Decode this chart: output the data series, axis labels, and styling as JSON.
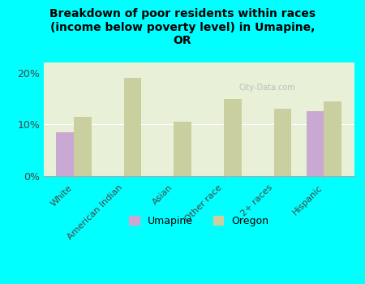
{
  "title": "Breakdown of poor residents within races\n(income below poverty level) in Umapine,\nOR",
  "categories": [
    "White",
    "American Indian",
    "Asian",
    "Other race",
    "2+ races",
    "Hispanic"
  ],
  "umapine_values": [
    8.5,
    0,
    0,
    0,
    0,
    12.5
  ],
  "oregon_values": [
    11.5,
    19.0,
    10.5,
    15.0,
    13.0,
    14.5
  ],
  "umapine_color": "#c9a8d4",
  "oregon_color": "#c9cf9e",
  "bg_color": "#00ffff",
  "plot_bg_color": "#e8f0d8",
  "ylim": [
    0,
    22
  ],
  "yticks": [
    0,
    10,
    20
  ],
  "ytick_labels": [
    "0%",
    "10%",
    "20%"
  ],
  "bar_width": 0.35,
  "watermark": "City-Data.com"
}
